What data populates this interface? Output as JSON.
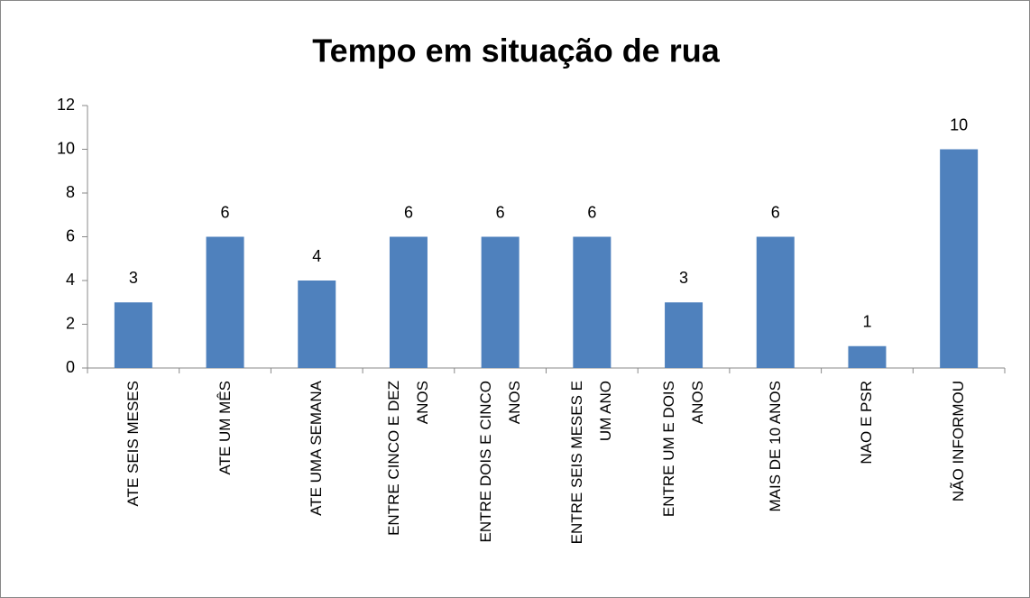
{
  "chart_data": {
    "type": "bar",
    "title": "Tempo em situação de rua",
    "categories": [
      "ATE SEIS MESES",
      "ATE UM MÊS",
      "ATE UMA SEMANA",
      "ENTRE CINCO E DEZ ANOS",
      "ENTRE DOIS E CINCO ANOS",
      "ENTRE SEIS MESES E UM ANO",
      "ENTRE UM E DOIS ANOS",
      "MAIS DE 10 ANOS",
      "NAO E PSR",
      "NÃO INFORMOU"
    ],
    "values": [
      3,
      6,
      4,
      6,
      6,
      6,
      3,
      6,
      1,
      10
    ],
    "color": "#4f81bd",
    "ylim": [
      0,
      12
    ],
    "yticks": [
      0,
      2,
      4,
      6,
      8,
      10,
      12
    ],
    "grid": false
  }
}
